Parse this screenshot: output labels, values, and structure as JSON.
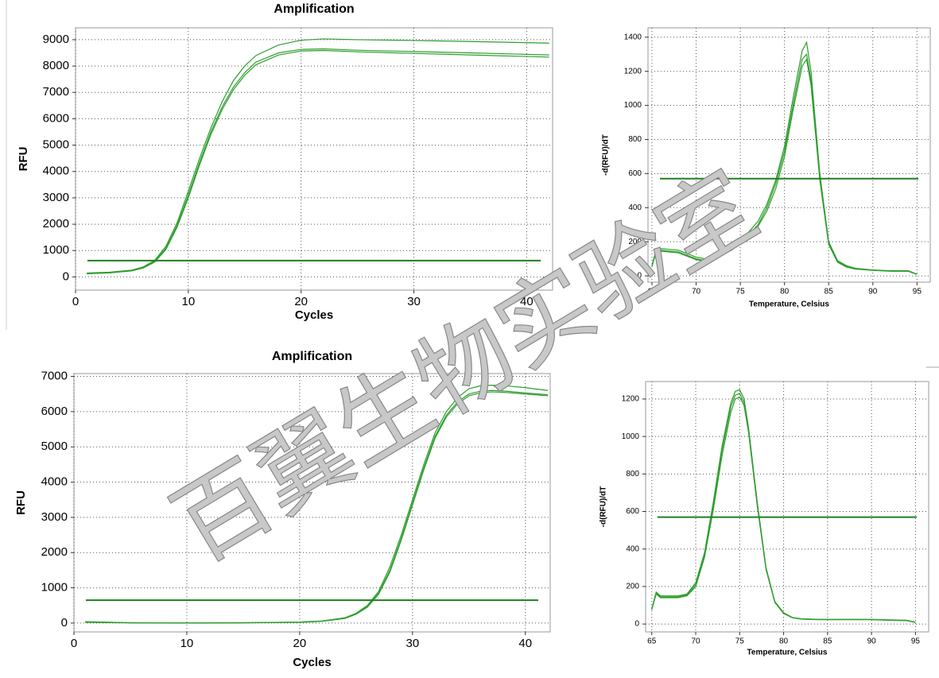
{
  "watermark": "百翼生物实验室",
  "chart_data": [
    {
      "type": "line",
      "title": "Amplification",
      "xlabel": "Cycles",
      "ylabel": "RFU",
      "xlim": [
        0,
        42.3
      ],
      "ylim": [
        -500,
        9450
      ],
      "xticks": [
        0,
        10,
        20,
        30,
        40
      ],
      "yticks": [
        0,
        1000,
        2000,
        3000,
        4000,
        5000,
        6000,
        7000,
        8000,
        9000
      ],
      "grid": true,
      "threshold": 620,
      "threshold_color": "#1f7f1f",
      "x": [
        1,
        3,
        5,
        6,
        7,
        8,
        9,
        10,
        11,
        12,
        13,
        14,
        15,
        16,
        18,
        20,
        22,
        25,
        30,
        35,
        42
      ],
      "series": [
        {
          "color": "#2e9e2e",
          "values": [
            150,
            180,
            260,
            380,
            620,
            1150,
            2050,
            3250,
            4500,
            5650,
            6650,
            7450,
            8000,
            8400,
            8800,
            8980,
            9030,
            9000,
            8970,
            8930,
            8870
          ]
        },
        {
          "color": "#2e9e2e",
          "values": [
            130,
            160,
            240,
            360,
            580,
            1080,
            1950,
            3100,
            4350,
            5500,
            6450,
            7200,
            7750,
            8150,
            8500,
            8630,
            8650,
            8600,
            8550,
            8500,
            8420
          ]
        },
        {
          "color": "#2e9e2e",
          "values": [
            120,
            150,
            230,
            340,
            560,
            1030,
            1880,
            3000,
            4250,
            5400,
            6350,
            7100,
            7650,
            8050,
            8420,
            8570,
            8590,
            8540,
            8480,
            8420,
            8340
          ]
        }
      ]
    },
    {
      "type": "line",
      "xlabel": "Temperature, Celsius",
      "ylabel": "-d(RFU)/dT",
      "xlim": [
        64.55,
        96.5
      ],
      "ylim": [
        -37,
        1455
      ],
      "xticks": [
        65,
        70,
        75,
        80,
        85,
        90,
        95
      ],
      "yticks": [
        0,
        200,
        400,
        600,
        800,
        1000,
        1200,
        1400
      ],
      "grid": true,
      "threshold": 570,
      "threshold_color": "#1f7f1f",
      "x": [
        65,
        65.5,
        66,
        67,
        68,
        69,
        70,
        71,
        72,
        73,
        74,
        75,
        76,
        77,
        78,
        79,
        80,
        81,
        82,
        82.5,
        83,
        84,
        85,
        86,
        87,
        88,
        90,
        92,
        94,
        95
      ],
      "series": [
        {
          "color": "#2e9e2e",
          "values": [
            60,
            160,
            160,
            155,
            150,
            130,
            110,
            100,
            110,
            140,
            170,
            210,
            260,
            320,
            420,
            560,
            760,
            1050,
            1320,
            1370,
            1200,
            600,
            200,
            90,
            60,
            45,
            35,
            30,
            30,
            10
          ]
        },
        {
          "color": "#2e9e2e",
          "values": [
            60,
            150,
            150,
            145,
            140,
            120,
            100,
            90,
            100,
            130,
            160,
            200,
            245,
            300,
            400,
            540,
            730,
            1010,
            1270,
            1300,
            1150,
            580,
            190,
            85,
            55,
            42,
            33,
            28,
            28,
            10
          ]
        },
        {
          "color": "#2e9e2e",
          "values": [
            55,
            145,
            145,
            140,
            135,
            115,
            95,
            85,
            95,
            125,
            150,
            190,
            235,
            290,
            380,
            510,
            700,
            980,
            1230,
            1270,
            1120,
            560,
            185,
            80,
            52,
            40,
            32,
            27,
            27,
            8
          ]
        }
      ]
    },
    {
      "type": "line",
      "title": "Amplification",
      "xlabel": "Cycles",
      "ylabel": "RFU",
      "xlim": [
        0,
        42.2
      ],
      "ylim": [
        -250,
        7080
      ],
      "xticks": [
        0,
        10,
        20,
        30,
        40
      ],
      "yticks": [
        0,
        1000,
        2000,
        3000,
        4000,
        5000,
        6000,
        7000
      ],
      "grid": true,
      "threshold": 650,
      "threshold_color": "#1f7f1f",
      "x": [
        1,
        5,
        10,
        15,
        20,
        22,
        24,
        25,
        26,
        27,
        28,
        29,
        30,
        31,
        32,
        33,
        34,
        35,
        36,
        37,
        38,
        40,
        42
      ],
      "series": [
        {
          "color": "#2e9e2e",
          "values": [
            40,
            10,
            5,
            10,
            30,
            60,
            150,
            280,
            500,
            900,
            1600,
            2500,
            3500,
            4500,
            5400,
            6000,
            6400,
            6650,
            6730,
            6750,
            6740,
            6680,
            6600
          ]
        },
        {
          "color": "#2e9e2e",
          "values": [
            30,
            10,
            5,
            10,
            25,
            55,
            140,
            260,
            470,
            850,
            1500,
            2400,
            3400,
            4400,
            5300,
            5900,
            6280,
            6500,
            6580,
            6600,
            6590,
            6530,
            6480
          ]
        },
        {
          "color": "#2e9e2e",
          "values": [
            20,
            5,
            0,
            5,
            20,
            50,
            130,
            250,
            450,
            820,
            1450,
            2350,
            3350,
            4350,
            5250,
            5850,
            6220,
            6450,
            6530,
            6560,
            6550,
            6500,
            6450
          ]
        }
      ]
    },
    {
      "type": "line",
      "xlabel": "Temperature, Celsius",
      "ylabel": "-d(RFU)/dT",
      "xlim": [
        64.3,
        96.5
      ],
      "ylim": [
        -42,
        1293
      ],
      "xticks": [
        65,
        70,
        75,
        80,
        85,
        90,
        95
      ],
      "yticks": [
        0,
        200,
        400,
        600,
        800,
        1000,
        1200
      ],
      "grid": true,
      "threshold": 570,
      "threshold_color": "#1f7f1f",
      "x": [
        65,
        65.5,
        66,
        67,
        68,
        69,
        70,
        71,
        72,
        73,
        74,
        74.5,
        75,
        75.5,
        76,
        77,
        78,
        79,
        80,
        81,
        82,
        84,
        86,
        88,
        90,
        92,
        94,
        95
      ],
      "series": [
        {
          "color": "#2e9e2e",
          "values": [
            80,
            170,
            150,
            150,
            150,
            160,
            220,
            380,
            650,
            950,
            1180,
            1240,
            1250,
            1200,
            1050,
            650,
            300,
            120,
            60,
            35,
            28,
            25,
            25,
            25,
            25,
            22,
            20,
            10
          ]
        },
        {
          "color": "#2e9e2e",
          "values": [
            80,
            165,
            145,
            145,
            145,
            155,
            210,
            370,
            630,
            930,
            1160,
            1220,
            1230,
            1180,
            1040,
            640,
            295,
            118,
            58,
            34,
            27,
            24,
            24,
            24,
            24,
            21,
            19,
            9
          ]
        },
        {
          "color": "#2e9e2e",
          "values": [
            75,
            160,
            140,
            140,
            140,
            150,
            200,
            355,
            610,
            900,
            1130,
            1200,
            1210,
            1165,
            1025,
            630,
            290,
            115,
            56,
            33,
            26,
            23,
            23,
            23,
            23,
            20,
            18,
            8
          ]
        }
      ]
    }
  ]
}
